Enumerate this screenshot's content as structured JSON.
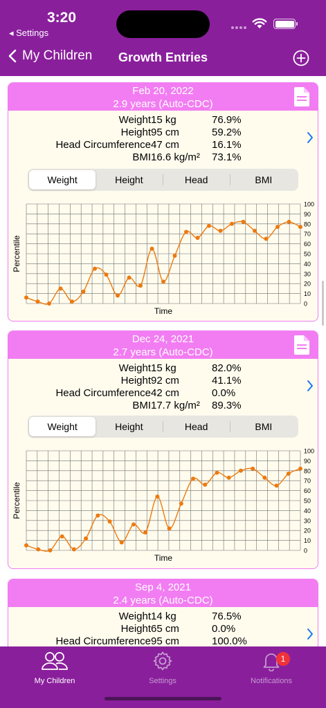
{
  "status": {
    "time": "3:20",
    "back_label": "◂ Settings"
  },
  "nav": {
    "back_label": "My Children",
    "title": "Growth Entries"
  },
  "colors": {
    "header": "#8a1f9c",
    "card_header": "#f27df2",
    "card_bg": "#fffcee",
    "chart_line": "#ec7a10",
    "link_blue": "#1877f2"
  },
  "entries": [
    {
      "date": "Feb 20, 2022",
      "age": "2.9 years (Auto-CDC)",
      "metrics": [
        {
          "label": "Weight",
          "value": "15 kg",
          "percentile": "76.9%"
        },
        {
          "label": "Height",
          "value": "95 cm",
          "percentile": "59.2%"
        },
        {
          "label": "Head Circumference",
          "value": "47 cm",
          "percentile": "16.1%"
        },
        {
          "label": "BMI",
          "value": "16.6 kg/m²",
          "percentile": "73.1%"
        }
      ],
      "tabs": [
        "Weight",
        "Height",
        "Head",
        "BMI"
      ],
      "selected_tab": "Weight"
    },
    {
      "date": "Dec 24, 2021",
      "age": "2.7 years (Auto-CDC)",
      "metrics": [
        {
          "label": "Weight",
          "value": "15 kg",
          "percentile": "82.0%"
        },
        {
          "label": "Height",
          "value": "92 cm",
          "percentile": "41.1%"
        },
        {
          "label": "Head Circumference",
          "value": "42 cm",
          "percentile": "0.0%"
        },
        {
          "label": "BMI",
          "value": "17.7 kg/m²",
          "percentile": "89.3%"
        }
      ],
      "tabs": [
        "Weight",
        "Height",
        "Head",
        "BMI"
      ],
      "selected_tab": "Weight"
    },
    {
      "date": "Sep 4, 2021",
      "age": "2.4 years (Auto-CDC)",
      "metrics": [
        {
          "label": "Weight",
          "value": "14 kg",
          "percentile": "76.5%"
        },
        {
          "label": "Height",
          "value": "65 cm",
          "percentile": "0.0%"
        },
        {
          "label": "Head Circumference",
          "value": "95 cm",
          "percentile": "100.0%"
        }
      ]
    }
  ],
  "chart_data": [
    {
      "type": "line",
      "xlabel": "Time",
      "ylabel": "Percentile",
      "ylim": [
        0,
        100
      ],
      "yticks": [
        "0",
        "10",
        "20",
        "30",
        "40",
        "50",
        "60",
        "70",
        "80",
        "90",
        "100"
      ],
      "grid": true,
      "series": [
        {
          "values": [
            6,
            2,
            0,
            15,
            2,
            12,
            35,
            29,
            8,
            26,
            18,
            55,
            22,
            48,
            72,
            66,
            78,
            73,
            80,
            82,
            73,
            65,
            77,
            82,
            77
          ]
        }
      ]
    },
    {
      "type": "line",
      "xlabel": "Time",
      "ylabel": "Percentile",
      "ylim": [
        0,
        100
      ],
      "yticks": [
        "0",
        "10",
        "20",
        "30",
        "40",
        "50",
        "60",
        "70",
        "80",
        "90",
        "100"
      ],
      "grid": true,
      "series": [
        {
          "values": [
            5,
            1,
            0,
            14,
            1,
            12,
            35,
            29,
            8,
            26,
            18,
            54,
            22,
            47,
            72,
            66,
            78,
            73,
            80,
            82,
            73,
            65,
            77,
            82
          ]
        }
      ]
    }
  ],
  "tabbar": {
    "items": [
      {
        "label": "My Children"
      },
      {
        "label": "Settings"
      },
      {
        "label": "Notifications",
        "badge": "1"
      }
    ]
  }
}
